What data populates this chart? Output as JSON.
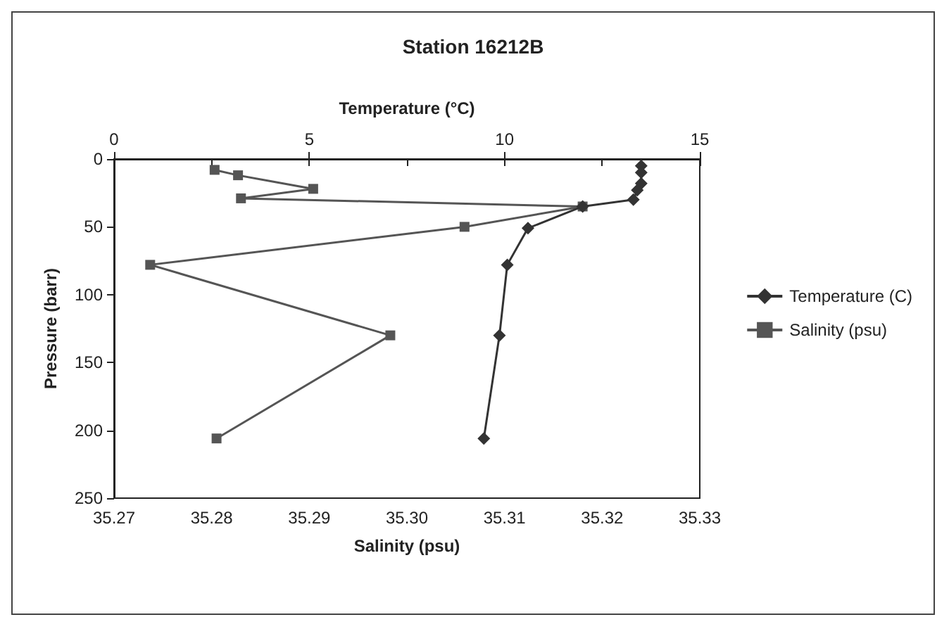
{
  "chart_data": {
    "type": "line",
    "title": "Station 16212B",
    "xlabel": "Salinity (psu)",
    "x2label": "Temperature (°C)",
    "ylabel": "Pressure (barr)",
    "xlim": [
      35.27,
      35.33
    ],
    "xticks": [
      35.27,
      35.28,
      35.29,
      {
        "value": 35.3,
        "label": "35.30"
      },
      35.31,
      35.32,
      35.33
    ],
    "x2lim": [
      0,
      15
    ],
    "x2ticks": [
      0,
      5,
      10,
      15
    ],
    "ylim": [
      250,
      0
    ],
    "yticks": [
      0,
      50,
      100,
      150,
      200,
      250
    ],
    "series": [
      {
        "name": "Temperature (C)",
        "axis": "x2",
        "marker": "diamond",
        "color": "#333333",
        "x": [
          13.5,
          13.5,
          13.5,
          13.4,
          13.3,
          12.0,
          10.6,
          10.07,
          9.87,
          9.47
        ],
        "values": [
          5,
          10,
          18,
          23,
          30,
          35,
          51,
          78,
          130,
          206
        ]
      },
      {
        "name": "Salinity (psu)",
        "marker": "square",
        "color": "#555555",
        "x": [
          35.2803,
          35.2827,
          35.2904,
          35.283,
          35.318,
          35.3059,
          35.2737,
          35.2983,
          35.2805
        ],
        "values": [
          8,
          12,
          22,
          29,
          35,
          50,
          78,
          130,
          206
        ]
      }
    ],
    "legend": "right",
    "grid": false,
    "line_style": "solid"
  }
}
